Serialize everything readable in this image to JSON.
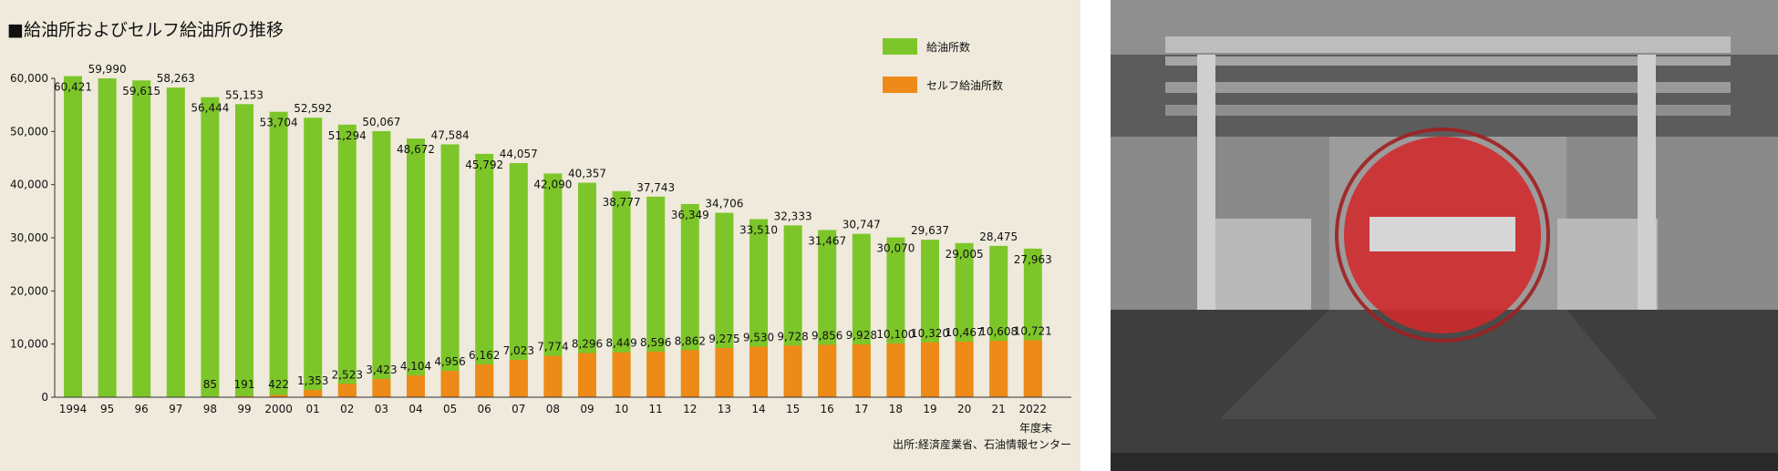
{
  "chart_data": {
    "type": "bar",
    "title": "■給油所およびセルフ給油所の推移",
    "categories": [
      "1994",
      "95",
      "96",
      "97",
      "98",
      "99",
      "2000",
      "01",
      "02",
      "03",
      "04",
      "05",
      "06",
      "07",
      "08",
      "09",
      "10",
      "11",
      "12",
      "13",
      "14",
      "15",
      "16",
      "17",
      "18",
      "19",
      "20",
      "21",
      "2022"
    ],
    "x_suffix": "年度末",
    "series": [
      {
        "name": "給油所数",
        "color": "#7dc62a",
        "values": [
          60421,
          59990,
          59615,
          58263,
          56444,
          55153,
          53704,
          52592,
          51294,
          50067,
          48672,
          47584,
          45792,
          44057,
          42090,
          40357,
          38777,
          37743,
          36349,
          34706,
          33510,
          32333,
          31467,
          30747,
          30070,
          29637,
          29005,
          28475,
          27963
        ]
      },
      {
        "name": "セルフ給油所数",
        "color": "#ee8a18",
        "values": [
          null,
          null,
          null,
          null,
          85,
          191,
          422,
          1353,
          2523,
          3423,
          4104,
          4956,
          6162,
          7023,
          7774,
          8296,
          8449,
          8596,
          8862,
          9275,
          9530,
          9728,
          9856,
          9928,
          10100,
          10320,
          10467,
          10608,
          10721
        ]
      }
    ],
    "ylim": [
      0,
      60000
    ],
    "yticks": [
      "0",
      "10,000",
      "20,000",
      "30,000",
      "40,000",
      "50,000",
      "60,000"
    ],
    "grid": false,
    "legend_position": "top-right",
    "source": "出所:経済産業省、石油情報センター"
  },
  "photo": {
    "description_icon": "no-entry-sign-icon",
    "sign_color": "#d2282a"
  }
}
